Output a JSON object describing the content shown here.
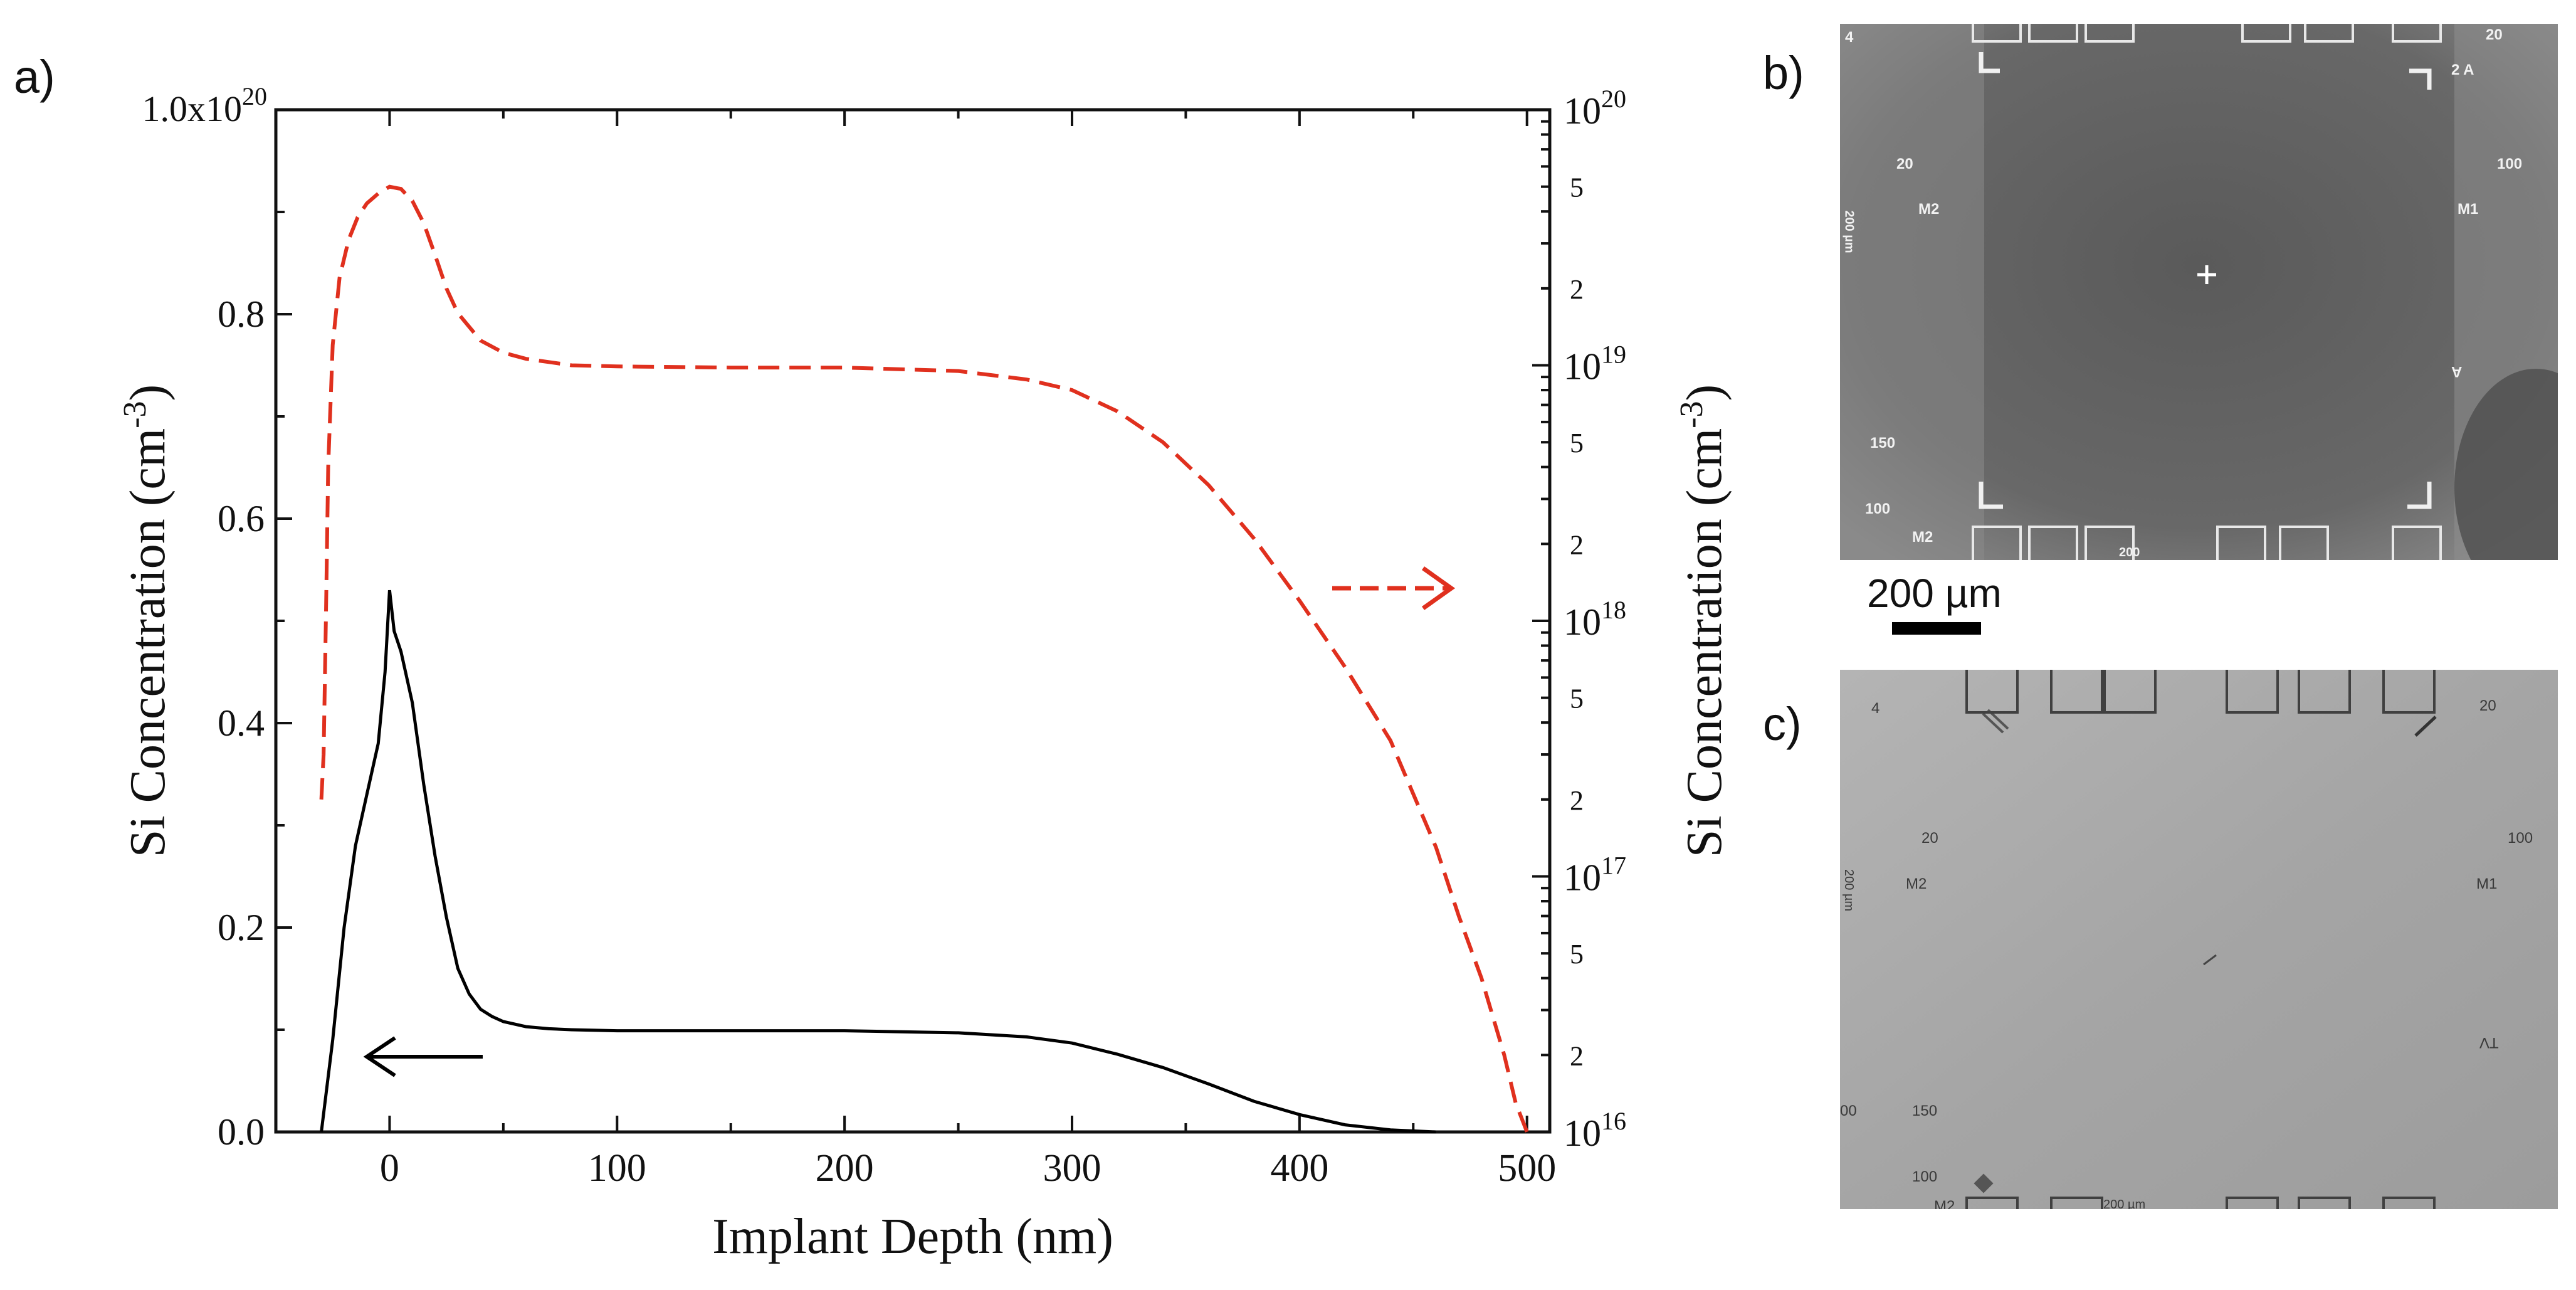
{
  "chart_data": {
    "type": "line",
    "xlabel": "Implant Depth (nm)",
    "ylabel_left": "Si Concentration (cm",
    "ylabel_right": "Si Concentration (cm",
    "ylabel_exponent": "-3",
    "ylabel_close": ")",
    "xlim": [
      -50,
      510
    ],
    "ylim_left": [
      0,
      1e+20
    ],
    "ylim_right_log": [
      1e+16,
      1e+20
    ],
    "x_ticks": [
      "0",
      "100",
      "200",
      "300",
      "400",
      "500"
    ],
    "x_tick_values": [
      0,
      100,
      200,
      300,
      400,
      500
    ],
    "y_left_ticks": [
      "0.0",
      "0.2",
      "0.4",
      "0.6",
      "0.8"
    ],
    "y_left_tick_values": [
      0,
      2e+19,
      4e+19,
      6e+19,
      8e+19
    ],
    "y_left_top_label_base": "1.0x10",
    "y_left_top_label_exp": "20",
    "y_right_decades": [
      {
        "value": 1e+20,
        "base": "10",
        "exp": "20"
      },
      {
        "value": 1e+19,
        "base": "10",
        "exp": "19"
      },
      {
        "value": 1e+18,
        "base": "10",
        "exp": "18"
      },
      {
        "value": 1e+17,
        "base": "10",
        "exp": "17"
      },
      {
        "value": 1e+16,
        "base": "10",
        "exp": "16"
      }
    ],
    "y_right_minor_labels": [
      {
        "value": 5e+19,
        "label": "5"
      },
      {
        "value": 2e+19,
        "label": "2"
      },
      {
        "value": 5e+18,
        "label": "5"
      },
      {
        "value": 2e+18,
        "label": "2"
      },
      {
        "value": 5e+17,
        "label": "5"
      },
      {
        "value": 2e+17,
        "label": "2"
      },
      {
        "value": 5e+16,
        "label": "5"
      },
      {
        "value": 2e+16,
        "label": "2"
      }
    ],
    "grid": false,
    "series": [
      {
        "axis": "left",
        "style": "solid",
        "color": "#000000",
        "x": [
          -30,
          -25,
          -20,
          -15,
          -10,
          -5,
          -2,
          0,
          2,
          5,
          10,
          15,
          20,
          25,
          30,
          35,
          40,
          45,
          50,
          60,
          70,
          80,
          100,
          150,
          200,
          250,
          280,
          300,
          320,
          340,
          360,
          380,
          400,
          420,
          440,
          460
        ],
        "y": [
          0,
          9e+18,
          2e+19,
          2.8e+19,
          3.3e+19,
          3.8e+19,
          4.5e+19,
          5.3e+19,
          4.9e+19,
          4.7e+19,
          4.2e+19,
          3.4e+19,
          2.7e+19,
          2.1e+19,
          1.6e+19,
          1.35e+19,
          1.2e+19,
          1.13e+19,
          1.08e+19,
          1.03e+19,
          1.01e+19,
          1e+19,
          9.9e+18,
          9.9e+18,
          9.9e+18,
          9.7e+18,
          9.3e+18,
          8.7e+18,
          7.6e+18,
          6.3e+18,
          4.7e+18,
          3e+18,
          1.7e+18,
          7e+17,
          2e+17,
          0.0
        ]
      },
      {
        "axis": "right",
        "style": "dashed",
        "color": "#e0301e",
        "x": [
          -30,
          -29,
          -28,
          -27,
          -25,
          -22,
          -18,
          -14,
          -10,
          -5,
          0,
          5,
          10,
          15,
          20,
          25,
          30,
          40,
          50,
          60,
          70,
          80,
          100,
          150,
          200,
          250,
          280,
          300,
          320,
          340,
          360,
          380,
          400,
          420,
          440,
          460,
          470,
          480,
          490,
          495,
          500
        ],
        "y": [
          2e+17,
          3e+17,
          1e+18,
          4e+18,
          1.2e+19,
          2.2e+19,
          3.1e+19,
          3.8e+19,
          4.3e+19,
          4.7e+19,
          5e+19,
          4.9e+19,
          4.4e+19,
          3.6e+19,
          2.7e+19,
          2e+19,
          1.6e+19,
          1.25e+19,
          1.12e+19,
          1.06e+19,
          1.03e+19,
          1e+19,
          9.9e+18,
          9.8e+18,
          9.8e+18,
          9.5e+18,
          8.8e+18,
          8e+18,
          6.6e+18,
          5e+18,
          3.4e+18,
          2.1e+18,
          1.2e+18,
          6.6e+17,
          3.4e+17,
          1.3e+17,
          7e+16,
          4e+16,
          2e+16,
          1.3e+16,
          1e+16
        ]
      }
    ]
  },
  "panels": {
    "a_label": "a)",
    "b_label": "b)",
    "c_label": "c)",
    "scale_bar_label": "200 µm"
  },
  "micrograph_b": {
    "labels": [
      "4",
      "20",
      "2 A",
      "20",
      "100",
      "M2",
      "M1",
      "200 µm",
      "150",
      "100",
      "M2",
      "200",
      "A"
    ]
  },
  "micrograph_c": {
    "labels": [
      "4",
      "20",
      "20",
      "100",
      "M2",
      "M1",
      "200 µm",
      "150",
      "100",
      "00",
      "TV",
      "M2",
      "200 µm"
    ]
  }
}
